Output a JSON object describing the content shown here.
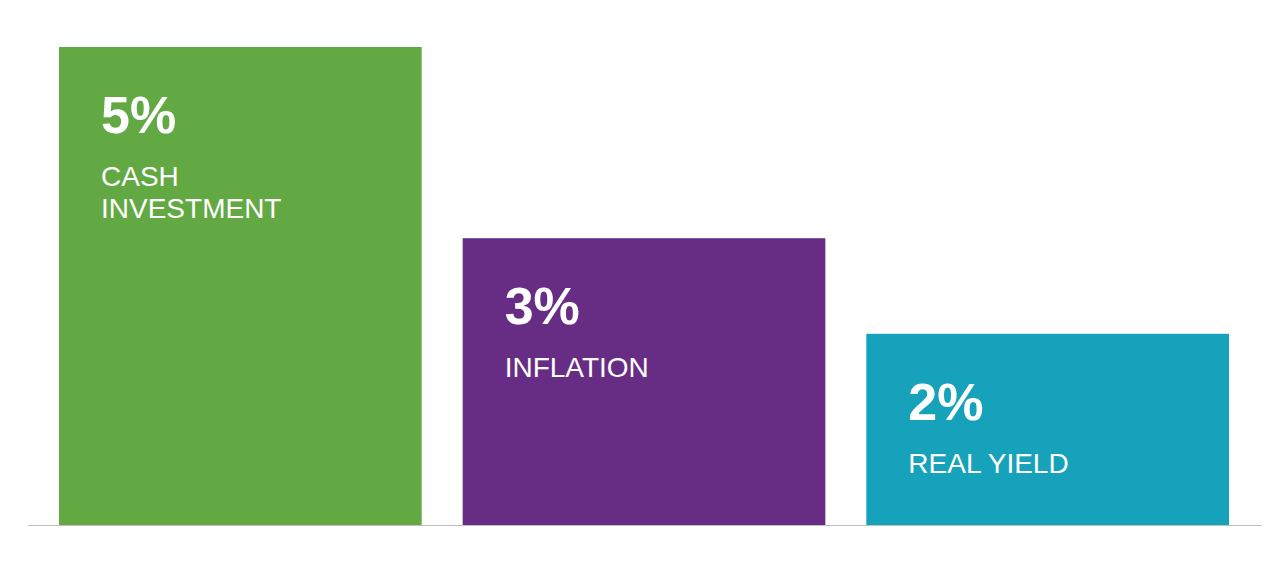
{
  "chart_data": {
    "type": "bar",
    "categories": [
      "CASH\nINVESTMENT",
      "INFLATION",
      "REAL YIELD"
    ],
    "values": [
      5,
      3,
      2
    ],
    "value_labels": [
      "5%",
      "3%",
      "2%"
    ],
    "colors": [
      "#62a843",
      "#672d84",
      "#16a2ba"
    ],
    "ylim": [
      0,
      5
    ],
    "data_labels": true,
    "tick_labels": false,
    "grid": false
  }
}
